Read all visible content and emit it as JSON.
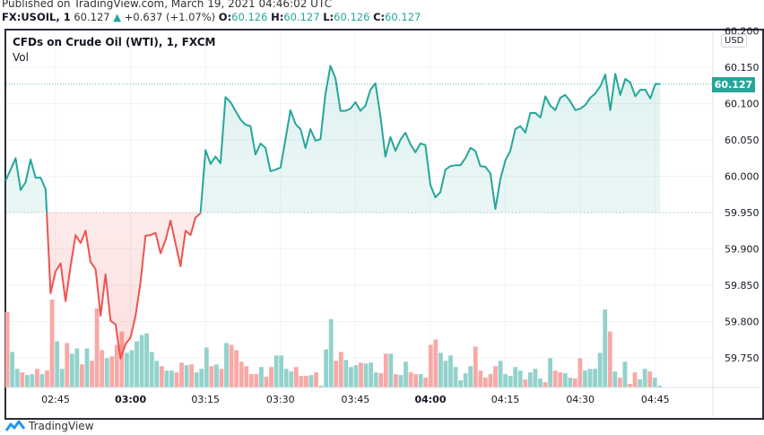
{
  "header": {
    "published": "Published on TradingView.com, March 19, 2021 04:46:02 UTC",
    "symbol": "FX:USOIL, 1",
    "last": "60.127",
    "change": "+0.637 (+1.07%)",
    "o_label": "O:",
    "o": "60.126",
    "h_label": "H:",
    "h": "60.127",
    "l_label": "L:",
    "l": "60.126",
    "c_label": "C:",
    "c": "60.127"
  },
  "legend": {
    "title": "CFDs on Crude Oil (WTI), 1, FXCM",
    "vol": "Vol"
  },
  "axis": {
    "currency": "USD",
    "current_price": "60.127"
  },
  "footer": {
    "brand": "TradingView"
  },
  "colors": {
    "up": "#26a69a",
    "down": "#ef5350",
    "vol_up": "#93d2cc",
    "vol_down": "#f7a9a7"
  },
  "chart_data": {
    "type": "line",
    "style": "baseline",
    "baseline": 59.95,
    "ylim": [
      59.71,
      60.2
    ],
    "yticks": [
      "60.200",
      "60.150",
      "60.100",
      "60.050",
      "60.000",
      "59.950",
      "59.900",
      "59.850",
      "59.800",
      "59.750"
    ],
    "xticks": [
      "02:45",
      "03:00",
      "03:15",
      "03:30",
      "03:45",
      "04:00",
      "04:15",
      "04:30",
      "04:45"
    ],
    "grid": true,
    "price": [
      [
        "02:35",
        59.994
      ],
      [
        "02:36",
        60.009
      ],
      [
        "02:37",
        60.025
      ],
      [
        "02:38",
        59.981
      ],
      [
        "02:39",
        59.992
      ],
      [
        "02:40",
        60.023
      ],
      [
        "02:41",
        59.998
      ],
      [
        "02:42",
        59.998
      ],
      [
        "02:43",
        59.982
      ],
      [
        "02:44",
        59.839
      ],
      [
        "02:45",
        59.869
      ],
      [
        "02:46",
        59.88
      ],
      [
        "02:47",
        59.828
      ],
      [
        "02:48",
        59.876
      ],
      [
        "02:49",
        59.919
      ],
      [
        "02:50",
        59.908
      ],
      [
        "02:51",
        59.925
      ],
      [
        "02:52",
        59.882
      ],
      [
        "02:53",
        59.872
      ],
      [
        "02:54",
        59.808
      ],
      [
        "02:55",
        59.865
      ],
      [
        "02:56",
        59.801
      ],
      [
        "02:57",
        59.796
      ],
      [
        "02:58",
        59.749
      ],
      [
        "02:59",
        59.769
      ],
      [
        "03:00",
        59.778
      ],
      [
        "03:01",
        59.808
      ],
      [
        "03:02",
        59.854
      ],
      [
        "03:03",
        59.918
      ],
      [
        "03:04",
        59.919
      ],
      [
        "03:05",
        59.922
      ],
      [
        "03:06",
        59.894
      ],
      [
        "03:07",
        59.912
      ],
      [
        "03:08",
        59.939
      ],
      [
        "03:09",
        59.907
      ],
      [
        "03:10",
        59.876
      ],
      [
        "03:11",
        59.925
      ],
      [
        "03:12",
        59.919
      ],
      [
        "03:13",
        59.943
      ],
      [
        "03:14",
        59.949
      ],
      [
        "03:15",
        60.036
      ],
      [
        "03:16",
        60.017
      ],
      [
        "03:17",
        60.027
      ],
      [
        "03:18",
        60.018
      ],
      [
        "03:19",
        60.109
      ],
      [
        "03:20",
        60.102
      ],
      [
        "03:21",
        60.09
      ],
      [
        "03:22",
        60.078
      ],
      [
        "03:23",
        60.071
      ],
      [
        "03:24",
        60.069
      ],
      [
        "03:25",
        60.03
      ],
      [
        "03:26",
        60.045
      ],
      [
        "03:27",
        60.039
      ],
      [
        "03:28",
        60.007
      ],
      [
        "03:29",
        60.009
      ],
      [
        "03:30",
        60.012
      ],
      [
        "03:31",
        60.051
      ],
      [
        "03:32",
        60.091
      ],
      [
        "03:33",
        60.072
      ],
      [
        "03:34",
        60.065
      ],
      [
        "03:35",
        60.039
      ],
      [
        "03:36",
        60.065
      ],
      [
        "03:37",
        60.049
      ],
      [
        "03:38",
        60.051
      ],
      [
        "03:39",
        60.113
      ],
      [
        "03:40",
        60.152
      ],
      [
        "03:41",
        60.135
      ],
      [
        "03:42",
        60.09
      ],
      [
        "03:43",
        60.09
      ],
      [
        "03:44",
        60.093
      ],
      [
        "03:45",
        60.102
      ],
      [
        "03:46",
        60.09
      ],
      [
        "03:47",
        60.097
      ],
      [
        "03:48",
        60.119
      ],
      [
        "03:49",
        60.128
      ],
      [
        "03:50",
        60.083
      ],
      [
        "03:51",
        60.027
      ],
      [
        "03:52",
        60.054
      ],
      [
        "03:53",
        60.035
      ],
      [
        "03:54",
        60.05
      ],
      [
        "03:55",
        60.06
      ],
      [
        "03:56",
        60.044
      ],
      [
        "03:57",
        60.033
      ],
      [
        "03:58",
        60.045
      ],
      [
        "03:59",
        60.043
      ],
      [
        "04:00",
        59.988
      ],
      [
        "04:01",
        59.971
      ],
      [
        "04:02",
        59.978
      ],
      [
        "04:03",
        60.009
      ],
      [
        "04:04",
        60.014
      ],
      [
        "04:05",
        60.015
      ],
      [
        "04:06",
        60.015
      ],
      [
        "04:07",
        60.025
      ],
      [
        "04:08",
        60.039
      ],
      [
        "04:09",
        60.035
      ],
      [
        "04:10",
        60.014
      ],
      [
        "04:11",
        60.013
      ],
      [
        "04:12",
        60.004
      ],
      [
        "04:13",
        59.955
      ],
      [
        "04:14",
        59.996
      ],
      [
        "04:15",
        60.022
      ],
      [
        "04:16",
        60.035
      ],
      [
        "04:17",
        60.065
      ],
      [
        "04:18",
        60.069
      ],
      [
        "04:19",
        60.06
      ],
      [
        "04:20",
        60.087
      ],
      [
        "04:21",
        60.087
      ],
      [
        "04:22",
        60.081
      ],
      [
        "04:23",
        60.11
      ],
      [
        "04:24",
        60.097
      ],
      [
        "04:25",
        60.091
      ],
      [
        "04:26",
        60.108
      ],
      [
        "04:27",
        60.112
      ],
      [
        "04:28",
        60.103
      ],
      [
        "04:29",
        60.091
      ],
      [
        "04:30",
        60.093
      ],
      [
        "04:31",
        60.098
      ],
      [
        "04:32",
        60.108
      ],
      [
        "04:33",
        60.114
      ],
      [
        "04:34",
        60.124
      ],
      [
        "04:35",
        60.14
      ],
      [
        "04:36",
        60.091
      ],
      [
        "04:37",
        60.141
      ],
      [
        "04:38",
        60.112
      ],
      [
        "04:39",
        60.134
      ],
      [
        "04:40",
        60.129
      ],
      [
        "04:41",
        60.11
      ],
      [
        "04:42",
        60.119
      ],
      [
        "04:43",
        60.119
      ],
      [
        "04:44",
        60.107
      ],
      [
        "04:45",
        60.127
      ],
      [
        "04:46",
        60.127
      ]
    ],
    "volume_relative": [
      [
        85,
        "d"
      ],
      [
        40,
        "u"
      ],
      [
        21,
        "u"
      ],
      [
        17,
        "d"
      ],
      [
        14,
        "u"
      ],
      [
        15,
        "u"
      ],
      [
        21,
        "d"
      ],
      [
        15,
        "u"
      ],
      [
        19,
        "d"
      ],
      [
        99,
        "d"
      ],
      [
        52,
        "u"
      ],
      [
        21,
        "u"
      ],
      [
        50,
        "d"
      ],
      [
        38,
        "u"
      ],
      [
        44,
        "u"
      ],
      [
        26,
        "d"
      ],
      [
        44,
        "u"
      ],
      [
        30,
        "d"
      ],
      [
        89,
        "d"
      ],
      [
        42,
        "d"
      ],
      [
        33,
        "u"
      ],
      [
        35,
        "d"
      ],
      [
        48,
        "d"
      ],
      [
        63,
        "d"
      ],
      [
        39,
        "u"
      ],
      [
        42,
        "u"
      ],
      [
        52,
        "u"
      ],
      [
        59,
        "u"
      ],
      [
        61,
        "u"
      ],
      [
        40,
        "u"
      ],
      [
        30,
        "u"
      ],
      [
        24,
        "d"
      ],
      [
        19,
        "u"
      ],
      [
        19,
        "u"
      ],
      [
        17,
        "d"
      ],
      [
        28,
        "d"
      ],
      [
        25,
        "u"
      ],
      [
        26,
        "d"
      ],
      [
        17,
        "u"
      ],
      [
        21,
        "u"
      ],
      [
        45,
        "u"
      ],
      [
        24,
        "d"
      ],
      [
        26,
        "u"
      ],
      [
        21,
        "d"
      ],
      [
        50,
        "u"
      ],
      [
        48,
        "d"
      ],
      [
        42,
        "d"
      ],
      [
        29,
        "d"
      ],
      [
        24,
        "d"
      ],
      [
        15,
        "d"
      ],
      [
        15,
        "d"
      ],
      [
        23,
        "u"
      ],
      [
        12,
        "d"
      ],
      [
        23,
        "d"
      ],
      [
        36,
        "u"
      ],
      [
        36,
        "u"
      ],
      [
        21,
        "u"
      ],
      [
        18,
        "u"
      ],
      [
        23,
        "d"
      ],
      [
        13,
        "d"
      ],
      [
        13,
        "d"
      ],
      [
        14,
        "u"
      ],
      [
        17,
        "d"
      ],
      [
        2,
        "u"
      ],
      [
        43,
        "u"
      ],
      [
        77,
        "u"
      ],
      [
        30,
        "d"
      ],
      [
        40,
        "d"
      ],
      [
        31,
        "u"
      ],
      [
        23,
        "u"
      ],
      [
        25,
        "u"
      ],
      [
        28,
        "d"
      ],
      [
        27,
        "u"
      ],
      [
        28,
        "u"
      ],
      [
        17,
        "u"
      ],
      [
        16,
        "d"
      ],
      [
        38,
        "d"
      ],
      [
        38,
        "u"
      ],
      [
        15,
        "d"
      ],
      [
        14,
        "u"
      ],
      [
        29,
        "u"
      ],
      [
        17,
        "d"
      ],
      [
        15,
        "d"
      ],
      [
        15,
        "u"
      ],
      [
        11,
        "d"
      ],
      [
        48,
        "d"
      ],
      [
        54,
        "d"
      ],
      [
        39,
        "u"
      ],
      [
        30,
        "u"
      ],
      [
        36,
        "u"
      ],
      [
        23,
        "u"
      ],
      [
        8,
        "u"
      ],
      [
        16,
        "u"
      ],
      [
        24,
        "u"
      ],
      [
        46,
        "d"
      ],
      [
        19,
        "d"
      ],
      [
        11,
        "d"
      ],
      [
        15,
        "d"
      ],
      [
        24,
        "d"
      ],
      [
        30,
        "u"
      ],
      [
        15,
        "u"
      ],
      [
        13,
        "u"
      ],
      [
        23,
        "u"
      ],
      [
        19,
        "u"
      ],
      [
        9,
        "d"
      ],
      [
        17,
        "u"
      ],
      [
        21,
        "u"
      ],
      [
        10,
        "u"
      ],
      [
        6,
        "d"
      ],
      [
        33,
        "u"
      ],
      [
        19,
        "d"
      ],
      [
        17,
        "d"
      ],
      [
        16,
        "u"
      ],
      [
        11,
        "u"
      ],
      [
        10,
        "d"
      ],
      [
        33,
        "d"
      ],
      [
        19,
        "u"
      ],
      [
        21,
        "u"
      ],
      [
        21,
        "u"
      ],
      [
        39,
        "u"
      ],
      [
        88,
        "u"
      ],
      [
        63,
        "d"
      ],
      [
        18,
        "u"
      ],
      [
        11,
        "d"
      ],
      [
        29,
        "u"
      ],
      [
        4,
        "d"
      ],
      [
        17,
        "d"
      ],
      [
        9,
        "u"
      ],
      [
        21,
        "u"
      ],
      [
        18,
        "d"
      ],
      [
        11,
        "u"
      ],
      [
        2,
        "u"
      ]
    ]
  }
}
